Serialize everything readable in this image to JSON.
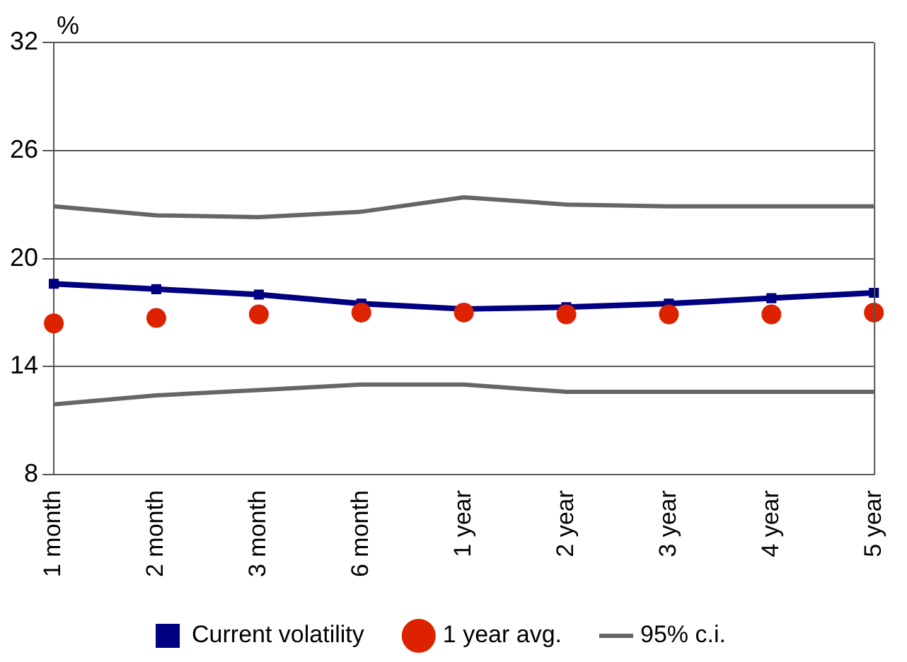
{
  "chart_data": {
    "type": "line",
    "ylabel": "%",
    "categories": [
      "1 month",
      "2 month",
      "3 month",
      "6 month",
      "1 year",
      "2 year",
      "3 year",
      "4 year",
      "5 year"
    ],
    "series": [
      {
        "name": "Current volatility",
        "color": "#000080",
        "marker": "square",
        "values": [
          18.6,
          18.3,
          18.0,
          17.5,
          17.2,
          17.3,
          17.5,
          17.8,
          18.1
        ]
      },
      {
        "name": "1 year avg.",
        "type": "scatter",
        "color": "#dd2200",
        "marker": "circle",
        "values": [
          16.4,
          16.7,
          16.9,
          17.0,
          17.0,
          16.9,
          16.9,
          16.9,
          17.0
        ]
      },
      {
        "name": "95% c.i.",
        "color": "#666666",
        "marker": "none",
        "values": [
          22.9,
          22.4,
          22.3,
          22.6,
          23.4,
          23.0,
          22.9,
          22.9,
          22.9
        ]
      },
      {
        "color": "#666666",
        "marker": "none",
        "values": [
          11.9,
          12.4,
          12.7,
          13.0,
          13.0,
          12.6,
          12.6,
          12.6,
          12.6
        ]
      }
    ],
    "ylim": [
      8,
      32
    ],
    "yticks": [
      8,
      14,
      20,
      26,
      32
    ],
    "grid": "y",
    "legend": "bottom"
  }
}
